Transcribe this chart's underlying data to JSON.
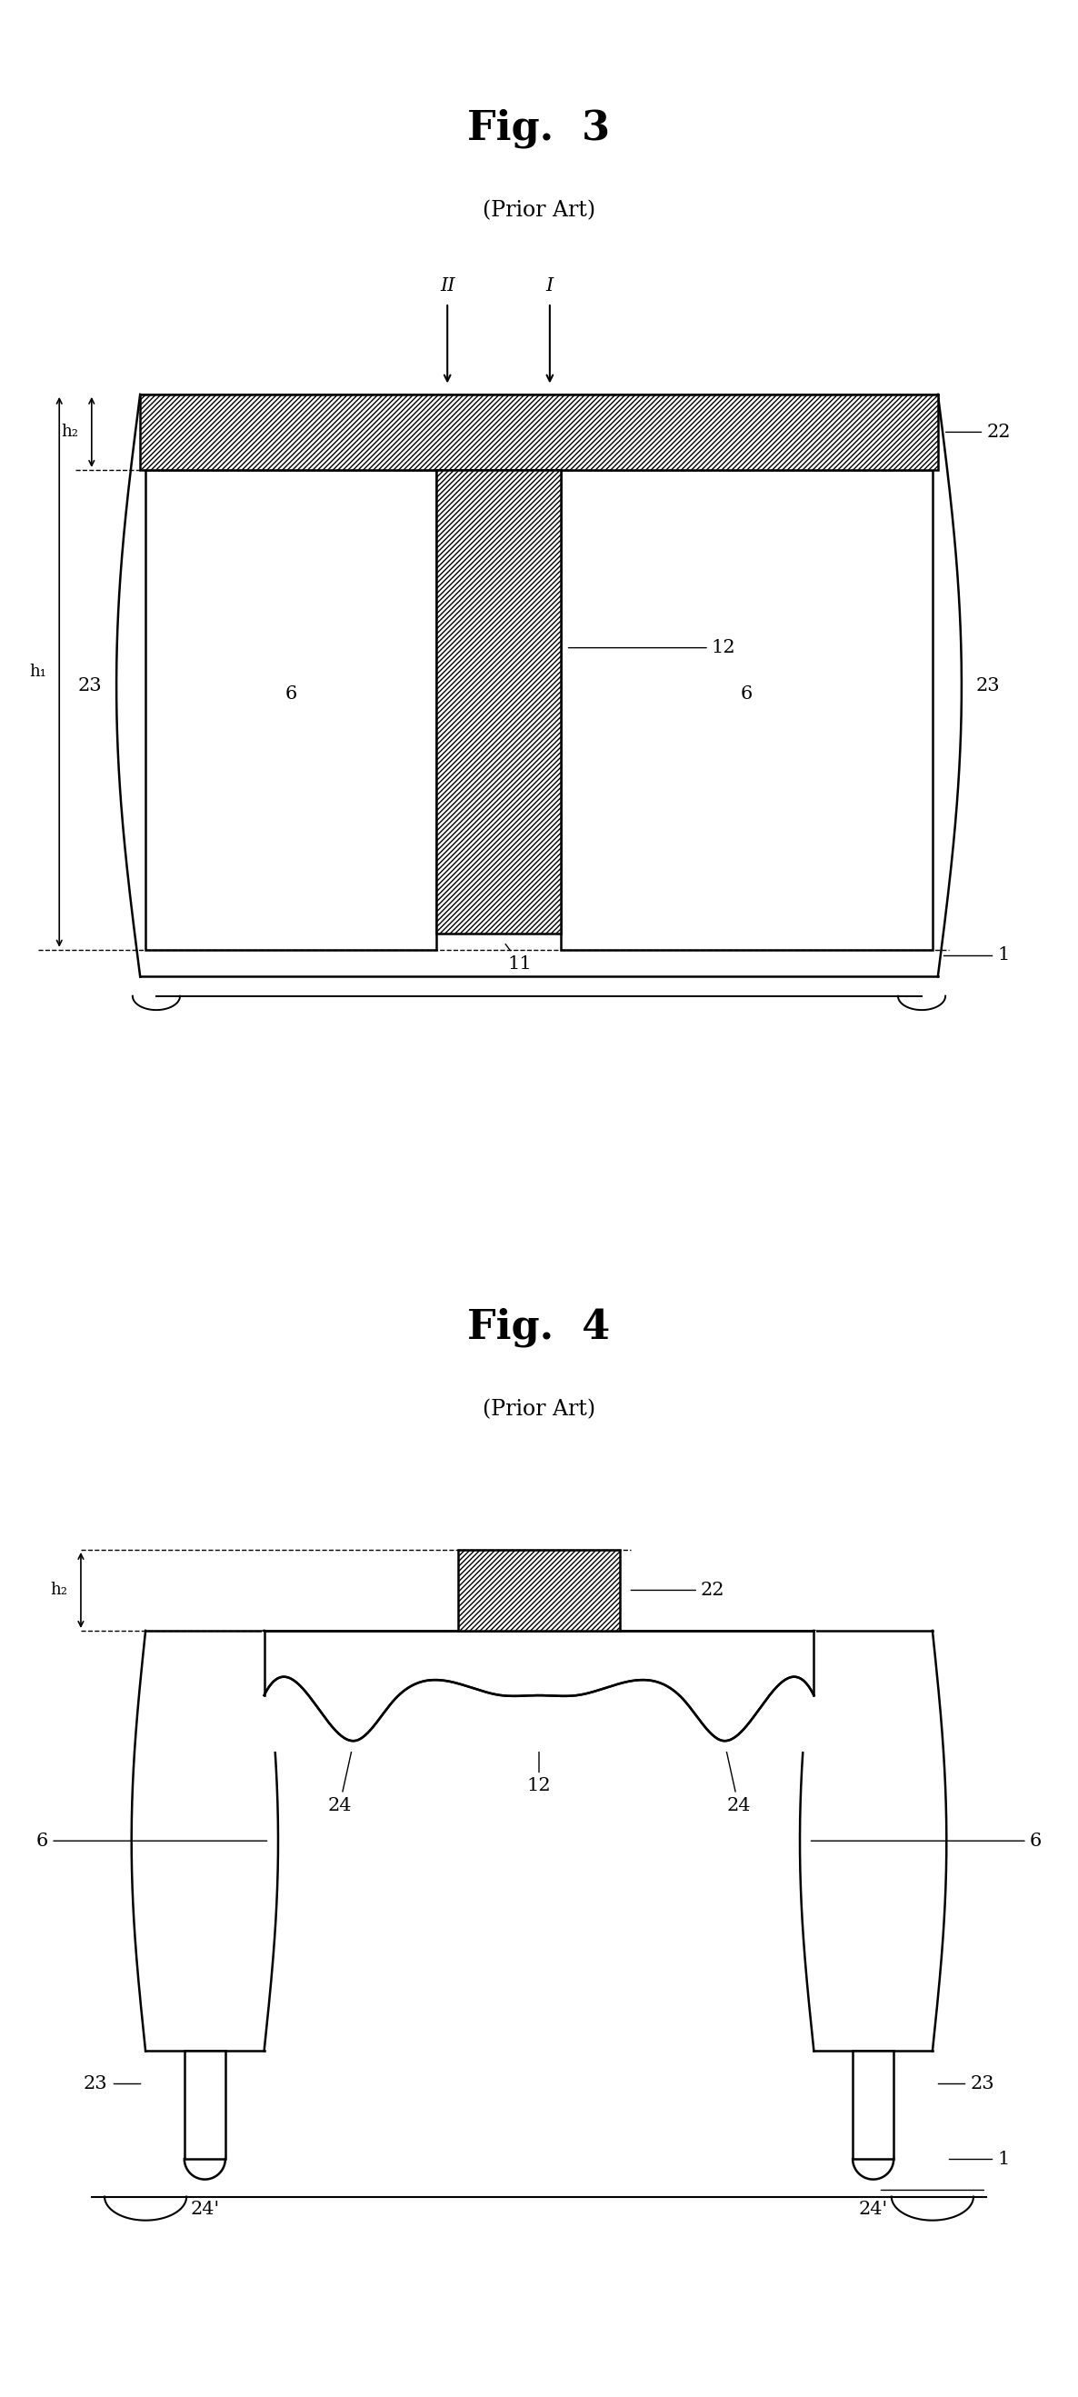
{
  "fig_width": 11.86,
  "fig_height": 26.37,
  "bg_color": "#ffffff",
  "fig3_title": "Fig.  3",
  "fig4_title": "Fig.  4",
  "prior_art": "(Prior Art)"
}
